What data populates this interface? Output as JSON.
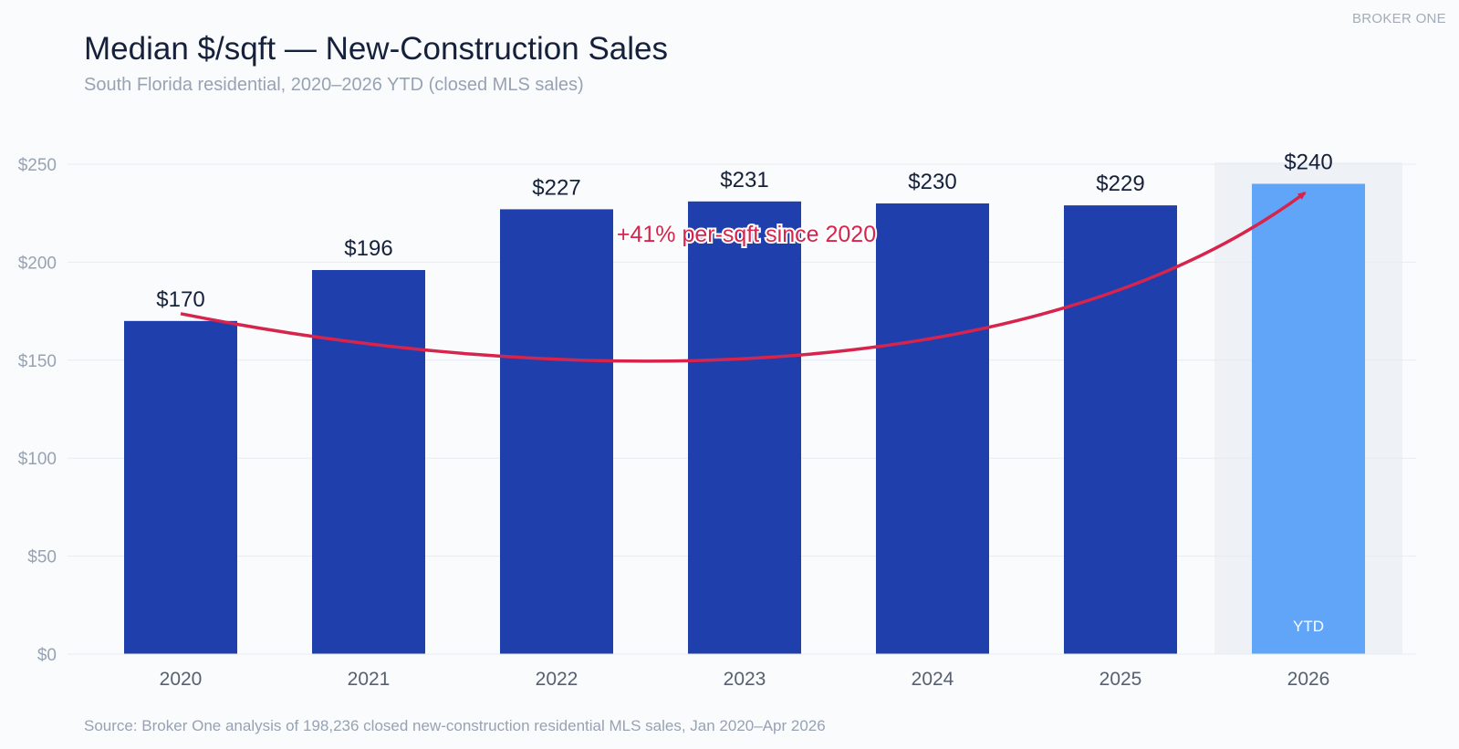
{
  "header": {
    "brand": "BROKER ONE",
    "title": "Median $/sqft — New-Construction Sales",
    "subtitle": "South Florida residential, 2020–2026 YTD (closed MLS sales)"
  },
  "footer": {
    "source": "Source: Broker One analysis of 198,236 closed new-construction residential MLS sales, Jan 2020–Apr 2026"
  },
  "chart_data": {
    "type": "bar",
    "title": "Median $/sqft — New-Construction Sales",
    "subtitle": "South Florida residential, 2020–2026 YTD (closed MLS sales)",
    "categories": [
      "2020",
      "2021",
      "2022",
      "2023",
      "2024",
      "2025",
      "2026"
    ],
    "values": [
      170,
      196,
      227,
      231,
      230,
      229,
      240
    ],
    "value_labels": [
      "$170",
      "$196",
      "$227",
      "$231",
      "$230",
      "$229",
      "$240"
    ],
    "ylim": [
      0,
      250
    ],
    "yticks": [
      0,
      50,
      100,
      150,
      200,
      250
    ],
    "ytick_labels": [
      "$0",
      "$50",
      "$100",
      "$150",
      "$200",
      "$250"
    ],
    "xlabel": "",
    "ylabel": "",
    "grid": true,
    "highlight": {
      "category": "2026",
      "label": "YTD"
    },
    "annotation": {
      "text": "+41% per-sqft since 2020",
      "from": "2020",
      "to": "2026"
    },
    "colors": {
      "bar": "#1f3fad",
      "highlight_bar": "#60a5f8",
      "highlight_band": "#eef1f6",
      "annotation": "#d6244d",
      "grid": "#e8ebf0",
      "tick_text": "#97a2b3",
      "category_text": "#56606f",
      "value_text": "#15203a"
    }
  }
}
